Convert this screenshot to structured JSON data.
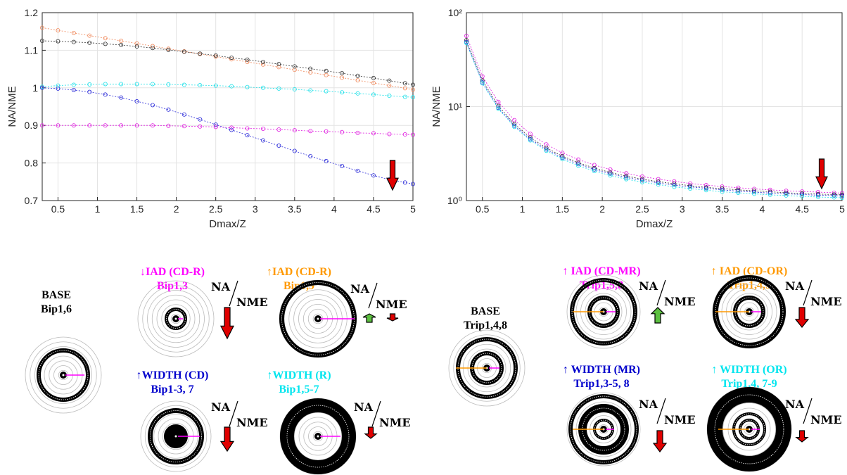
{
  "chart_data": [
    {
      "type": "line",
      "xlabel": "Dmax/Z",
      "ylabel": "NA/NME",
      "grid": true,
      "log_y": false,
      "xlim": [
        0.3,
        5
      ],
      "xticks": [
        0.5,
        1,
        1.5,
        2,
        2.5,
        3,
        3.5,
        4,
        4.5,
        5
      ],
      "ylim": [
        0.7,
        1.2
      ],
      "yticks": [
        0.7,
        0.8,
        0.9,
        1,
        1.1,
        1.2
      ],
      "x": [
        0.3,
        0.5,
        0.7,
        0.9,
        1.1,
        1.3,
        1.5,
        1.7,
        1.9,
        2.1,
        2.3,
        2.5,
        2.7,
        2.9,
        3.1,
        3.3,
        3.5,
        3.7,
        3.9,
        4.1,
        4.3,
        4.5,
        4.7,
        4.9,
        5.0
      ],
      "series": [
        {
          "color": "#f08a5d",
          "values": [
            1.16,
            1.153,
            1.146,
            1.139,
            1.132,
            1.125,
            1.118,
            1.111,
            1.104,
            1.097,
            1.09,
            1.083,
            1.076,
            1.069,
            1.062,
            1.055,
            1.048,
            1.041,
            1.034,
            1.027,
            1.02,
            1.013,
            1.006,
            0.999,
            0.995
          ]
        },
        {
          "color": "#333333",
          "values": [
            1.125,
            1.124,
            1.122,
            1.12,
            1.117,
            1.114,
            1.11,
            1.106,
            1.101,
            1.096,
            1.091,
            1.086,
            1.08,
            1.075,
            1.069,
            1.063,
            1.057,
            1.051,
            1.045,
            1.039,
            1.032,
            1.026,
            1.019,
            1.012,
            1.008
          ]
        },
        {
          "color": "#1fe0e8",
          "values": [
            1.003,
            1.006,
            1.008,
            1.009,
            1.01,
            1.01,
            1.01,
            1.01,
            1.009,
            1.008,
            1.007,
            1.006,
            1.004,
            1.002,
            1.0,
            0.998,
            0.996,
            0.993,
            0.991,
            0.988,
            0.985,
            0.982,
            0.979,
            0.976,
            0.975
          ]
        },
        {
          "color": "#2a2ad8",
          "values": [
            1.0,
            0.998,
            0.994,
            0.989,
            0.982,
            0.974,
            0.964,
            0.954,
            0.942,
            0.929,
            0.916,
            0.902,
            0.888,
            0.874,
            0.86,
            0.846,
            0.832,
            0.818,
            0.805,
            0.792,
            0.779,
            0.767,
            0.756,
            0.748,
            0.744
          ]
        },
        {
          "color": "#e020e0",
          "values": [
            0.9,
            0.9,
            0.9,
            0.9,
            0.9,
            0.9,
            0.9,
            0.9,
            0.899,
            0.898,
            0.897,
            0.896,
            0.894,
            0.892,
            0.891,
            0.889,
            0.887,
            0.885,
            0.884,
            0.882,
            0.88,
            0.879,
            0.877,
            0.876,
            0.875
          ]
        }
      ]
    },
    {
      "type": "line",
      "xlabel": "Dmax/Z",
      "ylabel": "NA/NME",
      "grid": true,
      "log_y": true,
      "xlim": [
        0.3,
        5
      ],
      "xticks": [
        0.5,
        1,
        1.5,
        2,
        2.5,
        3,
        3.5,
        4,
        4.5,
        5
      ],
      "ylim": [
        1,
        100
      ],
      "yticks": [
        {
          "value": 1,
          "label": "10⁰"
        },
        {
          "value": 10,
          "label": "10¹"
        },
        {
          "value": 100,
          "label": "10²"
        }
      ],
      "x": [
        0.3,
        0.5,
        0.7,
        0.9,
        1.1,
        1.3,
        1.5,
        1.7,
        1.9,
        2.1,
        2.3,
        2.5,
        2.7,
        2.9,
        3.1,
        3.3,
        3.5,
        3.7,
        3.9,
        4.1,
        4.3,
        4.5,
        4.7,
        4.9,
        5.0
      ],
      "series": [
        {
          "color": "#e020e0",
          "values": [
            56.56,
            21,
            11.2,
            7.18,
            5.13,
            3.96,
            3.22,
            2.73,
            2.39,
            2.14,
            1.95,
            1.8,
            1.69,
            1.6,
            1.52,
            1.46,
            1.41,
            1.37,
            1.33,
            1.3,
            1.27,
            1.25,
            1.23,
            1.21,
            1.2
          ]
        },
        {
          "color": "#333333",
          "values": [
            50.97,
            18.97,
            10.15,
            6.53,
            4.69,
            3.63,
            2.97,
            2.53,
            2.22,
            1.99,
            1.82,
            1.69,
            1.59,
            1.51,
            1.44,
            1.38,
            1.34,
            1.3,
            1.27,
            1.24,
            1.21,
            1.19,
            1.17,
            1.16,
            1.15
          ]
        },
        {
          "color": "#2a2ad8",
          "values": [
            48.73,
            18.15,
            9.73,
            6.26,
            4.5,
            3.5,
            2.86,
            2.44,
            2.14,
            1.93,
            1.76,
            1.64,
            1.54,
            1.46,
            1.4,
            1.35,
            1.3,
            1.26,
            1.23,
            1.2,
            1.18,
            1.16,
            1.14,
            1.13,
            1.12
          ]
        },
        {
          "color": "#1fe0e8",
          "values": [
            47.57,
            17.7,
            9.47,
            6.09,
            4.37,
            3.39,
            2.76,
            2.35,
            2.06,
            1.85,
            1.69,
            1.57,
            1.48,
            1.4,
            1.34,
            1.29,
            1.24,
            1.21,
            1.18,
            1.15,
            1.13,
            1.11,
            1.09,
            1.08,
            1.07
          ]
        }
      ]
    }
  ],
  "ratio_label": {
    "numerator": "NA",
    "denominator": "NME"
  },
  "diagrams": [
    {
      "title": "BASE",
      "caption": "Bip1,6",
      "color": "#000000"
    },
    {
      "title": "↓IAD (CD-R)",
      "caption": "Bip1,3",
      "color": "#ff00ff"
    },
    {
      "title": "↑IAD (CD-R)",
      "caption": "Bip1,9",
      "color": "#ff9900"
    },
    {
      "title": "↑WIDTH (CD)",
      "caption": "Bip1-3, 7",
      "color": "#0000cc"
    },
    {
      "title": "↑WIDTH (R)",
      "caption": "Bip1,5-7",
      "color": "#00e5ee"
    },
    {
      "title": "BASE",
      "caption": "Trip1,4,8",
      "color": "#000000"
    },
    {
      "title": "↑ IAD (CD-MR)",
      "caption": "Trip1,5,8",
      "color": "#ff00ff"
    },
    {
      "title": "↑ IAD (CD-OR)",
      "caption": "Trip1,4,9",
      "color": "#ff9900"
    },
    {
      "title": "↑ WIDTH (MR)",
      "caption": "Trip1,3-5, 8",
      "color": "#0000cc"
    },
    {
      "title": "↑ WIDTH (OR)",
      "caption": "Trip1,4, 7-9",
      "color": "#00e5ee"
    }
  ]
}
